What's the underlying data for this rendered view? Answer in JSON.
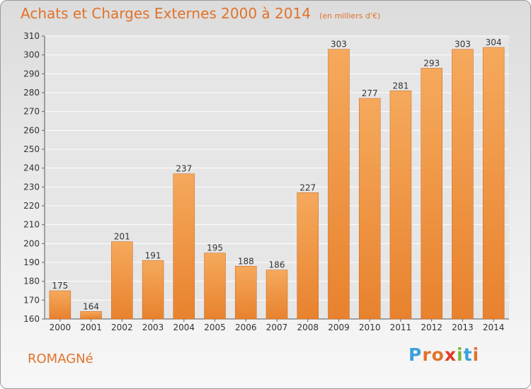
{
  "chart_data": {
    "type": "bar",
    "title": "Achats et Charges Externes 2000 à 2014",
    "subtitle": "(en milliers d'€)",
    "categories": [
      "2000",
      "2001",
      "2002",
      "2003",
      "2004",
      "2005",
      "2006",
      "2007",
      "2008",
      "2009",
      "2010",
      "2011",
      "2012",
      "2013",
      "2014"
    ],
    "values": [
      175,
      164,
      201,
      191,
      237,
      195,
      188,
      186,
      227,
      303,
      277,
      281,
      293,
      303,
      304
    ],
    "ylim": [
      160,
      310
    ],
    "yticks": [
      160,
      170,
      180,
      190,
      200,
      210,
      220,
      230,
      240,
      250,
      260,
      270,
      280,
      290,
      300,
      310
    ],
    "xlabel": "",
    "ylabel": "",
    "grid": true,
    "bar_color": "#e8822e",
    "bar_color_light": "#f5a95c"
  },
  "footer": {
    "commune": "ROMAGNé",
    "logo_text": "Proxiti",
    "logo_colors": [
      "#3aa0de",
      "#e0732a",
      "#e0732a",
      "#e03a2a",
      "#7ab83a",
      "#3aa0de",
      "#e0732a"
    ]
  }
}
